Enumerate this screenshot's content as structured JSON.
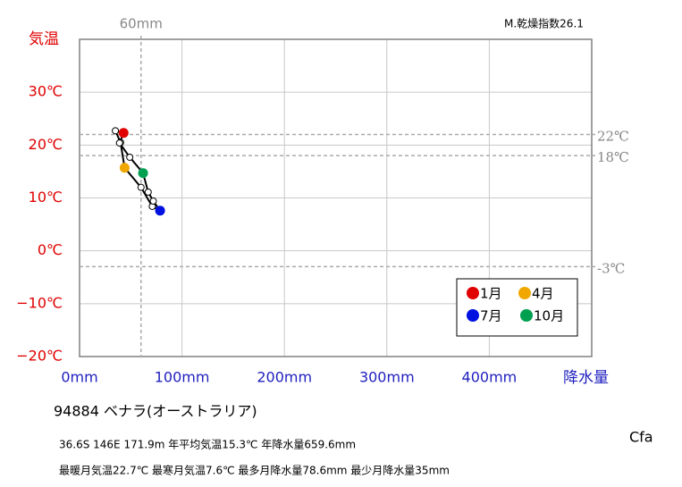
{
  "chart_data": {
    "type": "climograph",
    "y_label": "気温",
    "x_label": "降水量",
    "aridity": "M.乾燥指数26.1",
    "station": "94884  ベナラ(オーストラリア)",
    "info": [
      "36.6S  146E 171.9m  年平均気温15.3℃ 年降水量659.6mm",
      "最暖月気温22.7℃ 最寒月気温7.6℃ 最多月降水量78.6mm 最少月降水量35mm"
    ],
    "climate": "Cfa",
    "x": [
      43,
      35,
      40,
      44,
      60,
      71,
      78.6,
      72,
      67,
      62,
      49,
      39
    ],
    "values": [
      22.3,
      22.7,
      20.5,
      15.7,
      12.0,
      8.4,
      7.6,
      9.4,
      11.1,
      14.7,
      17.7,
      20.4
    ],
    "point_colors": [
      "#e00000",
      "#ffffff",
      "#ffffff",
      "#f0a800",
      "#ffffff",
      "#ffffff",
      "#0010e0",
      "#ffffff",
      "#ffffff",
      "#00a050",
      "#ffffff",
      "#ffffff"
    ],
    "line_color": "#000000",
    "legend": [
      {
        "label": "1月",
        "color": "#e00000"
      },
      {
        "label": "4月",
        "color": "#f0a800"
      },
      {
        "label": "7月",
        "color": "#0010e0"
      },
      {
        "label": "10月",
        "color": "#00a050"
      }
    ],
    "xlim": [
      0,
      500
    ],
    "ylim": [
      -20,
      40
    ],
    "xticks": [
      {
        "value": 0,
        "label": "0mm"
      },
      {
        "value": 100,
        "label": "100mm"
      },
      {
        "value": 200,
        "label": "200mm"
      },
      {
        "value": 300,
        "label": "300mm"
      },
      {
        "value": 400,
        "label": "400mm"
      }
    ],
    "yticks": [
      {
        "value": -20,
        "label": "−20℃"
      },
      {
        "value": -10,
        "label": "−10℃"
      },
      {
        "value": 0,
        "label": "0℃"
      },
      {
        "value": 10,
        "label": "10℃"
      },
      {
        "value": 20,
        "label": "20℃"
      },
      {
        "value": 30,
        "label": "30℃"
      }
    ],
    "reference_lines": [
      {
        "axis": "x",
        "value": 60,
        "label": "60mm"
      },
      {
        "axis": "y",
        "value": 22,
        "label": "22℃"
      },
      {
        "axis": "y",
        "value": 18,
        "label": "18℃"
      },
      {
        "axis": "y",
        "value": -3,
        "label": "-3℃"
      }
    ],
    "grid": true
  }
}
